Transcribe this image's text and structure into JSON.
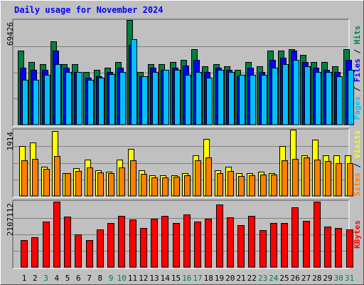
{
  "chart_title": "Daily usage for November 2024",
  "colors": {
    "background": "#c0c0c0",
    "hits": "#008040",
    "files": "#0000ff",
    "pages": "#00c0ff",
    "visits": "#ffff00",
    "sites": "#ff8000",
    "kbytes": "#ff0000",
    "weekend_day_label": "#008040",
    "weekday_day_label": "#000000"
  },
  "chart_data": [
    {
      "type": "bar",
      "panel": "pages-files-hits",
      "categories": [
        "1",
        "2",
        "3",
        "4",
        "5",
        "6",
        "7",
        "8",
        "9",
        "10",
        "11",
        "12",
        "13",
        "14",
        "15",
        "16",
        "17",
        "18",
        "19",
        "20",
        "21",
        "22",
        "23",
        "24",
        "25",
        "26",
        "27",
        "28",
        "29",
        "30",
        "31"
      ],
      "weekend_days": [
        "3",
        "9",
        "10",
        "16",
        "17",
        "23",
        "24",
        "30",
        "31"
      ],
      "ymax_label": "69426",
      "ylim": [
        0,
        69426
      ],
      "right_axis_label_parts": [
        {
          "text": "Pages",
          "color": "#00c0ff"
        },
        {
          "text": " / ",
          "color": "#000000"
        },
        {
          "text": "Files",
          "color": "#0000ff"
        },
        {
          "text": " / ",
          "color": "#000000"
        },
        {
          "text": "Hits",
          "color": "#008040"
        }
      ],
      "series": [
        {
          "name": "Hits",
          "color": "#008040",
          "values": [
            48900,
            41600,
            40300,
            55400,
            40300,
            40300,
            35000,
            36300,
            37600,
            41600,
            69400,
            35000,
            40300,
            40300,
            41600,
            43000,
            50200,
            38900,
            40300,
            38900,
            36300,
            41600,
            38900,
            48900,
            48900,
            50200,
            46200,
            41600,
            41600,
            38900,
            50200
          ]
        },
        {
          "name": "Files",
          "color": "#0000ff",
          "values": [
            37600,
            36300,
            36300,
            48900,
            37600,
            35000,
            31000,
            32300,
            35000,
            37600,
            52800,
            32300,
            37600,
            36300,
            37600,
            39000,
            42900,
            35000,
            37600,
            36300,
            32300,
            37600,
            35000,
            43000,
            44200,
            48900,
            41600,
            37600,
            36300,
            35000,
            42900
          ]
        },
        {
          "name": "Pages",
          "color": "#00c0ff",
          "values": [
            29700,
            29700,
            33000,
            40200,
            35000,
            35000,
            29700,
            31000,
            33600,
            35000,
            56800,
            32300,
            35000,
            36300,
            36300,
            33000,
            35000,
            31000,
            36300,
            35000,
            33000,
            33000,
            33000,
            37600,
            40200,
            43000,
            38900,
            35000,
            35000,
            32300,
            36300
          ]
        }
      ]
    },
    {
      "type": "bar",
      "panel": "sites-visits",
      "categories": [
        "1",
        "2",
        "3",
        "4",
        "5",
        "6",
        "7",
        "8",
        "9",
        "10",
        "11",
        "12",
        "13",
        "14",
        "15",
        "16",
        "17",
        "18",
        "19",
        "20",
        "21",
        "22",
        "23",
        "24",
        "25",
        "26",
        "27",
        "28",
        "29",
        "30",
        "31"
      ],
      "ymax_label": "1914",
      "ylim": [
        0,
        1914
      ],
      "right_axis_label_parts": [
        {
          "text": "Sites",
          "color": "#ff8000"
        },
        {
          "text": " / ",
          "color": "#000000"
        },
        {
          "text": "Visits",
          "color": "#ffff00"
        }
      ],
      "series": [
        {
          "name": "Visits",
          "color": "#ffff00",
          "values": [
            1450,
            1550,
            850,
            1870,
            650,
            800,
            1050,
            750,
            700,
            1050,
            1350,
            750,
            600,
            600,
            600,
            650,
            1170,
            1640,
            750,
            850,
            650,
            650,
            700,
            650,
            1450,
            1910,
            1170,
            1620,
            1170,
            1170,
            1170
          ]
        },
        {
          "name": "Sites",
          "color": "#ff8000",
          "values": [
            1030,
            1080,
            790,
            1150,
            650,
            730,
            820,
            680,
            650,
            830,
            1030,
            640,
            540,
            540,
            550,
            600,
            1020,
            1120,
            650,
            730,
            580,
            600,
            620,
            610,
            1030,
            1070,
            1110,
            1040,
            1010,
            940,
            950
          ]
        }
      ]
    },
    {
      "type": "bar",
      "panel": "kbytes",
      "categories": [
        "1",
        "2",
        "3",
        "4",
        "5",
        "6",
        "7",
        "8",
        "9",
        "10",
        "11",
        "12",
        "13",
        "14",
        "15",
        "16",
        "17",
        "18",
        "19",
        "20",
        "21",
        "22",
        "23",
        "24",
        "25",
        "26",
        "27",
        "28",
        "29",
        "30",
        "31"
      ],
      "ymax_label": "2107112",
      "ylim": [
        0,
        2107112
      ],
      "right_axis_label_parts": [
        {
          "text": "KBytes",
          "color": "#ff0000"
        }
      ],
      "series": [
        {
          "name": "KBytes",
          "color": "#ff0000",
          "values": [
            875000,
            970000,
            1470000,
            2110000,
            1630000,
            1060000,
            870000,
            1220000,
            1420000,
            1640000,
            1530000,
            1250000,
            1560000,
            1650000,
            1410000,
            1700000,
            1460000,
            1560000,
            2020000,
            1600000,
            1340000,
            1660000,
            1200000,
            1430000,
            1410000,
            1920000,
            1490000,
            2110000,
            1300000,
            1270000,
            1220000
          ]
        }
      ]
    }
  ]
}
